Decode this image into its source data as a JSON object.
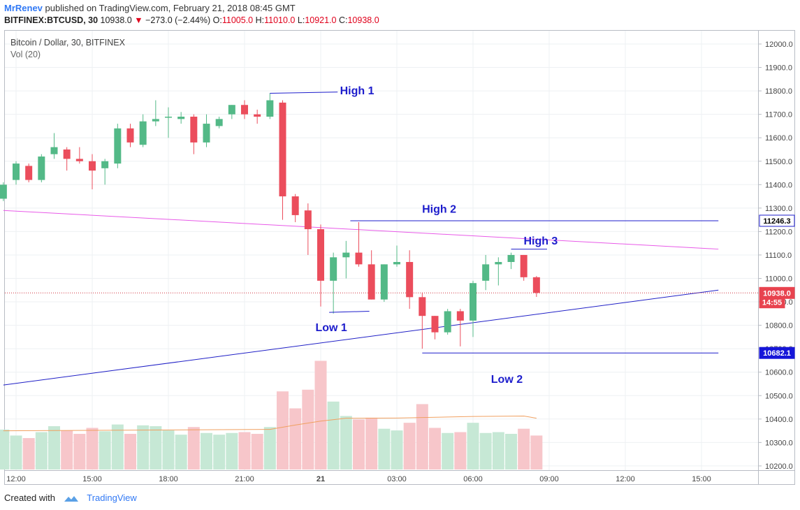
{
  "header": {
    "username": "MrRenev",
    "published_text": "published on TradingView.com, February 21, 2018 08:45 GMT",
    "symbol": "BITFINEX:BTCUSD, 30",
    "last": "10938.0",
    "change_arrow": "▼",
    "change": "−273.0 (−2.44%)",
    "o_label": "O:",
    "o_value": "11005.0",
    "h_label": "H:",
    "h_value": "11010.0",
    "l_label": "L:",
    "l_value": "10921.0",
    "c_label": "C:",
    "c_value": "10938.0"
  },
  "legend": {
    "title": "Bitcoin / Dollar, 30, BITFINEX",
    "volume": "Vol (20)"
  },
  "footer": {
    "created_with": "Created with",
    "brand": "TradingView"
  },
  "colors": {
    "up": "#53b987",
    "down": "#eb4d5c",
    "vol_up": "#c6e8d5",
    "vol_down": "#f7c6ca",
    "annotation": "#1d1dcc",
    "trend_magenta": "#e85ae8",
    "trend_blue": "#1f1fc6",
    "vol_ma": "#f0a060",
    "price_line": "#d0303f"
  },
  "chart_data": {
    "type": "candlestick",
    "interval_minutes": 30,
    "y_axis": {
      "range": [
        10150,
        12070
      ],
      "ticks": [
        10200,
        10300,
        10400,
        10500,
        10600,
        10700,
        10800,
        10900,
        11000,
        11100,
        11200,
        11300,
        11400,
        11500,
        11600,
        11700,
        11800,
        11900,
        12000
      ]
    },
    "x_axis": {
      "ticks": [
        {
          "label": "12:00",
          "t": 0
        },
        {
          "label": "15:00",
          "t": 180
        },
        {
          "label": "18:00",
          "t": 360
        },
        {
          "label": "21:00",
          "t": 540
        },
        {
          "label": "21",
          "t": 720,
          "bold": true
        },
        {
          "label": "03:00",
          "t": 900
        },
        {
          "label": "06:00",
          "t": 1080
        },
        {
          "label": "09:00",
          "t": 1260
        },
        {
          "label": "12:00",
          "t": 1440
        },
        {
          "label": "15:00",
          "t": 1620
        }
      ],
      "unit_note": "t = minutes since first tick (12:00)"
    },
    "candles": [
      {
        "t": -30,
        "o": 11340,
        "h": 11410,
        "l": 11330,
        "c": 11400,
        "v": 235
      },
      {
        "t": 0,
        "o": 11420,
        "h": 11500,
        "l": 11400,
        "c": 11490,
        "v": 200
      },
      {
        "t": 30,
        "o": 11480,
        "h": 11490,
        "l": 11410,
        "c": 11420,
        "v": 185
      },
      {
        "t": 60,
        "o": 11420,
        "h": 11530,
        "l": 11410,
        "c": 11520,
        "v": 220
      },
      {
        "t": 90,
        "o": 11530,
        "h": 11620,
        "l": 11510,
        "c": 11560,
        "v": 255
      },
      {
        "t": 120,
        "o": 11550,
        "h": 11560,
        "l": 11460,
        "c": 11510,
        "v": 230
      },
      {
        "t": 150,
        "o": 11510,
        "h": 11560,
        "l": 11490,
        "c": 11500,
        "v": 210
      },
      {
        "t": 180,
        "o": 11500,
        "h": 11530,
        "l": 11380,
        "c": 11460,
        "v": 245
      },
      {
        "t": 210,
        "o": 11470,
        "h": 11510,
        "l": 11400,
        "c": 11500,
        "v": 225
      },
      {
        "t": 240,
        "o": 11490,
        "h": 11660,
        "l": 11470,
        "c": 11640,
        "v": 265
      },
      {
        "t": 270,
        "o": 11640,
        "h": 11660,
        "l": 11560,
        "c": 11580,
        "v": 210
      },
      {
        "t": 300,
        "o": 11570,
        "h": 11700,
        "l": 11560,
        "c": 11670,
        "v": 260
      },
      {
        "t": 330,
        "o": 11670,
        "h": 11760,
        "l": 11650,
        "c": 11680,
        "v": 255
      },
      {
        "t": 360,
        "o": 11690,
        "h": 11730,
        "l": 11600,
        "c": 11690,
        "v": 230
      },
      {
        "t": 390,
        "o": 11680,
        "h": 11710,
        "l": 11660,
        "c": 11690,
        "v": 205
      },
      {
        "t": 420,
        "o": 11690,
        "h": 11700,
        "l": 11530,
        "c": 11580,
        "v": 250
      },
      {
        "t": 450,
        "o": 11580,
        "h": 11700,
        "l": 11560,
        "c": 11660,
        "v": 215
      },
      {
        "t": 480,
        "o": 11650,
        "h": 11690,
        "l": 11640,
        "c": 11680,
        "v": 205
      },
      {
        "t": 510,
        "o": 11700,
        "h": 11740,
        "l": 11680,
        "c": 11740,
        "v": 215
      },
      {
        "t": 540,
        "o": 11740,
        "h": 11760,
        "l": 11680,
        "c": 11700,
        "v": 220
      },
      {
        "t": 570,
        "o": 11700,
        "h": 11720,
        "l": 11660,
        "c": 11690,
        "v": 210
      },
      {
        "t": 600,
        "o": 11690,
        "h": 11790,
        "l": 11680,
        "c": 11760,
        "v": 250
      },
      {
        "t": 630,
        "o": 11750,
        "h": 11760,
        "l": 11250,
        "c": 11350,
        "v": 460
      },
      {
        "t": 660,
        "o": 11350,
        "h": 11360,
        "l": 11240,
        "c": 11270,
        "v": 360
      },
      {
        "t": 690,
        "o": 11290,
        "h": 11320,
        "l": 11100,
        "c": 11210,
        "v": 470
      },
      {
        "t": 720,
        "o": 11210,
        "h": 11230,
        "l": 10880,
        "c": 10990,
        "v": 640
      },
      {
        "t": 750,
        "o": 10990,
        "h": 11110,
        "l": 10850,
        "c": 11090,
        "v": 400
      },
      {
        "t": 780,
        "o": 11090,
        "h": 11160,
        "l": 11000,
        "c": 11110,
        "v": 315
      },
      {
        "t": 810,
        "o": 11110,
        "h": 11240,
        "l": 11050,
        "c": 11060,
        "v": 295
      },
      {
        "t": 840,
        "o": 11060,
        "h": 11120,
        "l": 10910,
        "c": 10910,
        "v": 305
      },
      {
        "t": 870,
        "o": 10910,
        "h": 11060,
        "l": 10900,
        "c": 11060,
        "v": 240
      },
      {
        "t": 900,
        "o": 11060,
        "h": 11140,
        "l": 11050,
        "c": 11070,
        "v": 230
      },
      {
        "t": 930,
        "o": 11070,
        "h": 11120,
        "l": 10870,
        "c": 10920,
        "v": 275
      },
      {
        "t": 960,
        "o": 10920,
        "h": 10940,
        "l": 10700,
        "c": 10840,
        "v": 385
      },
      {
        "t": 990,
        "o": 10840,
        "h": 10840,
        "l": 10740,
        "c": 10770,
        "v": 245
      },
      {
        "t": 1020,
        "o": 10770,
        "h": 10870,
        "l": 10760,
        "c": 10860,
        "v": 215
      },
      {
        "t": 1050,
        "o": 10860,
        "h": 10870,
        "l": 10710,
        "c": 10820,
        "v": 220
      },
      {
        "t": 1080,
        "o": 10820,
        "h": 10990,
        "l": 10750,
        "c": 10980,
        "v": 275
      },
      {
        "t": 1110,
        "o": 10990,
        "h": 11100,
        "l": 10950,
        "c": 11060,
        "v": 215
      },
      {
        "t": 1140,
        "o": 11060,
        "h": 11090,
        "l": 10970,
        "c": 11070,
        "v": 220
      },
      {
        "t": 1170,
        "o": 11070,
        "h": 11110,
        "l": 11040,
        "c": 11100,
        "v": 210
      },
      {
        "t": 1200,
        "o": 11100,
        "h": 11100,
        "l": 10990,
        "c": 11005,
        "v": 240
      },
      {
        "t": 1230,
        "o": 11005,
        "h": 11010,
        "l": 10921,
        "c": 10938,
        "v": 200
      }
    ],
    "volume_ma": [
      {
        "t": -30,
        "v": 228
      },
      {
        "t": 300,
        "v": 232
      },
      {
        "t": 600,
        "v": 236
      },
      {
        "t": 660,
        "v": 262
      },
      {
        "t": 720,
        "v": 285
      },
      {
        "t": 780,
        "v": 302
      },
      {
        "t": 900,
        "v": 303
      },
      {
        "t": 1080,
        "v": 312
      },
      {
        "t": 1200,
        "v": 315
      },
      {
        "t": 1230,
        "v": 302
      }
    ],
    "annotations": [
      {
        "label": "High 1",
        "line": [
          [
            600,
            11790
          ],
          [
            760,
            11795
          ]
        ],
        "text_at": [
          806,
          11800
        ]
      },
      {
        "label": "High 2",
        "line": [
          [
            790,
            11246
          ],
          [
            1660,
            11246
          ]
        ],
        "text_at": [
          1000,
          11295
        ]
      },
      {
        "label": "High 3",
        "line": [
          [
            1170,
            11125
          ],
          [
            1255,
            11125
          ]
        ],
        "text_at": [
          1240,
          11160
        ]
      },
      {
        "label": "Low 1",
        "line": [
          [
            740,
            10855
          ],
          [
            835,
            10860
          ]
        ],
        "text_at": [
          745,
          10790
        ]
      },
      {
        "label": "Low 2",
        "line": [
          [
            960,
            10682
          ],
          [
            1660,
            10682
          ]
        ],
        "text_at": [
          1160,
          10570
        ]
      }
    ],
    "trend_lines": [
      {
        "name": "resistance",
        "from": [
          -30,
          11290
        ],
        "to": [
          1660,
          11125
        ],
        "color": "magenta"
      },
      {
        "name": "support",
        "from": [
          -30,
          10545
        ],
        "to": [
          1660,
          10950
        ],
        "color": "blue"
      }
    ],
    "price_labels": [
      {
        "value": "11246.3",
        "price": 11246,
        "style": "outline"
      },
      {
        "value": "10938.0",
        "price": 10938,
        "style": "red"
      },
      {
        "value": "14:55",
        "price": 10898,
        "style": "red-small"
      },
      {
        "value": "10682.1",
        "price": 10682,
        "style": "blue"
      }
    ],
    "last_price": 10938
  }
}
